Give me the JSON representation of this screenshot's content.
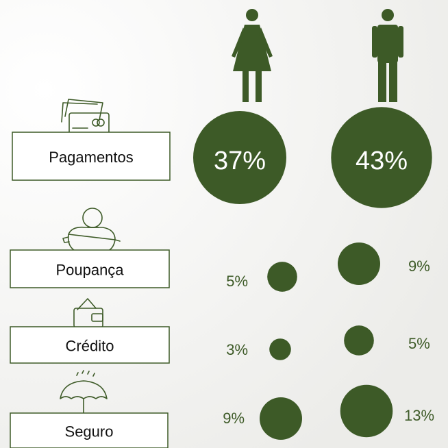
{
  "chart_data": {
    "type": "bubble",
    "categories": [
      "Pagamentos",
      "Poupança",
      "Crédito",
      "Seguro"
    ],
    "series": [
      {
        "color": "#3d5a27",
        "values": [
          37,
          5,
          3,
          9
        ],
        "value_labels": [
          "37%",
          "5%",
          "3%",
          "9%"
        ]
      },
      {
        "color": "#3d5a27",
        "values": [
          43,
          9,
          5,
          13
        ],
        "value_labels": [
          "43%",
          "9%",
          "5%",
          "13%"
        ]
      }
    ]
  }
}
